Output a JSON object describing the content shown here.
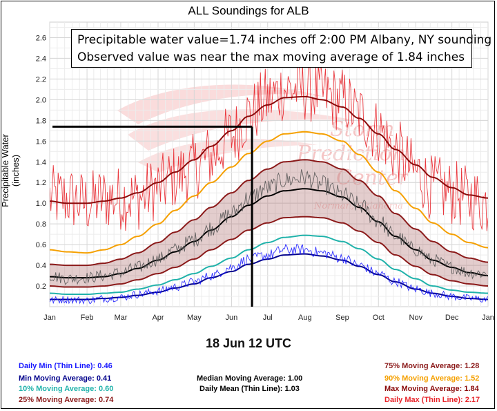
{
  "chart_data": {
    "type": "line",
    "title": "ALL Soundings for ALB",
    "ylabel": "Precipitable Water (inches)",
    "xlabel": "",
    "ylim": [
      0,
      2.75
    ],
    "x_ticks": [
      "Jan",
      "Feb",
      "Mar",
      "Apr",
      "May",
      "Jun",
      "Jul",
      "Aug",
      "Sep",
      "Oct",
      "Nov",
      "Dec",
      "Jan"
    ],
    "y_ticks": [
      0.2,
      0.4,
      0.6,
      0.8,
      1.0,
      1.2,
      1.4,
      1.6,
      1.8,
      2.0,
      2.2,
      2.4,
      2.6
    ],
    "grid": true,
    "series": [
      {
        "name": "Daily Max (Thin Line)",
        "color": "#e8242a",
        "style": "thin-noisy",
        "x": [
          1,
          15,
          32,
          46,
          60,
          74,
          91,
          105,
          121,
          135,
          152,
          166,
          182,
          196,
          213,
          227,
          244,
          258,
          274,
          288,
          305,
          319,
          335,
          349,
          365
        ],
        "values": [
          1.05,
          1.05,
          1.0,
          1.05,
          1.05,
          1.05,
          1.15,
          1.25,
          1.35,
          1.45,
          1.65,
          1.85,
          2.0,
          2.1,
          2.1,
          2.05,
          2.0,
          1.85,
          1.7,
          1.5,
          1.3,
          1.15,
          1.1,
          1.05,
          1.0
        ]
      },
      {
        "name": "Max Moving Average",
        "color": "#8b0a0a",
        "x": [
          1,
          15,
          32,
          46,
          60,
          74,
          91,
          105,
          121,
          135,
          152,
          166,
          182,
          196,
          213,
          227,
          244,
          258,
          274,
          288,
          305,
          319,
          335,
          349,
          365
        ],
        "values": [
          1.02,
          1.0,
          1.0,
          1.02,
          1.05,
          1.1,
          1.2,
          1.3,
          1.42,
          1.55,
          1.7,
          1.84,
          1.95,
          2.02,
          2.03,
          2.0,
          1.93,
          1.82,
          1.67,
          1.52,
          1.37,
          1.25,
          1.15,
          1.08,
          1.05
        ]
      },
      {
        "name": "90% Moving Average",
        "color": "#f5a000",
        "x": [
          1,
          15,
          32,
          46,
          60,
          74,
          91,
          105,
          121,
          135,
          152,
          166,
          182,
          196,
          213,
          227,
          244,
          258,
          274,
          288,
          305,
          319,
          335,
          349,
          365
        ],
        "values": [
          0.55,
          0.53,
          0.52,
          0.55,
          0.6,
          0.68,
          0.8,
          0.93,
          1.07,
          1.2,
          1.35,
          1.48,
          1.6,
          1.67,
          1.69,
          1.67,
          1.6,
          1.47,
          1.3,
          1.12,
          0.95,
          0.81,
          0.7,
          0.62,
          0.57
        ]
      },
      {
        "name": "75% Moving Average",
        "color": "#8b1a1a",
        "x": [
          1,
          15,
          32,
          46,
          60,
          74,
          91,
          105,
          121,
          135,
          152,
          166,
          182,
          196,
          213,
          227,
          244,
          258,
          274,
          288,
          305,
          319,
          335,
          349,
          365
        ],
        "values": [
          0.41,
          0.4,
          0.4,
          0.42,
          0.46,
          0.52,
          0.62,
          0.72,
          0.84,
          0.96,
          1.1,
          1.22,
          1.33,
          1.4,
          1.42,
          1.4,
          1.33,
          1.22,
          1.07,
          0.9,
          0.75,
          0.63,
          0.53,
          0.47,
          0.43
        ]
      },
      {
        "name": "Median Moving Average",
        "color": "#000000",
        "x": [
          1,
          15,
          32,
          46,
          60,
          74,
          91,
          105,
          121,
          135,
          152,
          166,
          182,
          196,
          213,
          227,
          244,
          258,
          274,
          288,
          305,
          319,
          335,
          349,
          365
        ],
        "values": [
          0.29,
          0.28,
          0.28,
          0.29,
          0.32,
          0.37,
          0.45,
          0.53,
          0.63,
          0.74,
          0.87,
          0.98,
          1.07,
          1.12,
          1.14,
          1.12,
          1.06,
          0.96,
          0.82,
          0.68,
          0.55,
          0.45,
          0.38,
          0.33,
          0.3
        ]
      },
      {
        "name": "Daily Mean (Thin Line)",
        "color": "#555555",
        "style": "thin-noisy",
        "x": [
          1,
          15,
          32,
          46,
          60,
          74,
          91,
          105,
          121,
          135,
          152,
          166,
          182,
          196,
          213,
          227,
          244,
          258,
          274,
          288,
          305,
          319,
          335,
          349,
          365
        ],
        "values": [
          0.3,
          0.27,
          0.28,
          0.3,
          0.33,
          0.38,
          0.46,
          0.55,
          0.65,
          0.76,
          0.9,
          1.05,
          1.15,
          1.22,
          1.25,
          1.18,
          1.08,
          0.98,
          0.83,
          0.68,
          0.55,
          0.45,
          0.38,
          0.33,
          0.32
        ]
      },
      {
        "name": "25% Moving Average",
        "color": "#8b1a1a",
        "x": [
          1,
          15,
          32,
          46,
          60,
          74,
          91,
          105,
          121,
          135,
          152,
          166,
          182,
          196,
          213,
          227,
          244,
          258,
          274,
          288,
          305,
          319,
          335,
          349,
          365
        ],
        "values": [
          0.2,
          0.19,
          0.19,
          0.2,
          0.22,
          0.26,
          0.32,
          0.38,
          0.46,
          0.55,
          0.65,
          0.74,
          0.81,
          0.86,
          0.87,
          0.86,
          0.81,
          0.73,
          0.62,
          0.5,
          0.39,
          0.31,
          0.25,
          0.22,
          0.2
        ]
      },
      {
        "name": "10% Moving Average",
        "color": "#20b2aa",
        "x": [
          1,
          15,
          32,
          46,
          60,
          74,
          91,
          105,
          121,
          135,
          152,
          166,
          182,
          196,
          213,
          227,
          244,
          258,
          274,
          288,
          305,
          319,
          335,
          349,
          365
        ],
        "values": [
          0.13,
          0.12,
          0.12,
          0.13,
          0.14,
          0.17,
          0.21,
          0.26,
          0.32,
          0.39,
          0.47,
          0.55,
          0.62,
          0.67,
          0.69,
          0.68,
          0.63,
          0.56,
          0.46,
          0.36,
          0.27,
          0.2,
          0.16,
          0.14,
          0.13
        ]
      },
      {
        "name": "Min Moving Average",
        "color": "#00008b",
        "x": [
          1,
          15,
          32,
          46,
          60,
          74,
          91,
          105,
          121,
          135,
          152,
          166,
          182,
          196,
          213,
          227,
          244,
          258,
          274,
          288,
          305,
          319,
          335,
          349,
          365
        ],
        "values": [
          0.07,
          0.07,
          0.07,
          0.08,
          0.09,
          0.11,
          0.14,
          0.18,
          0.22,
          0.28,
          0.34,
          0.41,
          0.46,
          0.5,
          0.51,
          0.49,
          0.45,
          0.39,
          0.31,
          0.24,
          0.17,
          0.13,
          0.1,
          0.08,
          0.07
        ]
      },
      {
        "name": "Daily Min (Thin Line)",
        "color": "#1a1aff",
        "style": "thin-noisy",
        "x": [
          1,
          15,
          32,
          46,
          60,
          74,
          91,
          105,
          121,
          135,
          152,
          166,
          182,
          196,
          213,
          227,
          244,
          258,
          274,
          288,
          305,
          319,
          335,
          349,
          365
        ],
        "values": [
          0.06,
          0.07,
          0.06,
          0.08,
          0.09,
          0.12,
          0.15,
          0.19,
          0.24,
          0.3,
          0.38,
          0.46,
          0.5,
          0.55,
          0.55,
          0.52,
          0.47,
          0.4,
          0.32,
          0.24,
          0.17,
          0.13,
          0.1,
          0.08,
          0.07
        ]
      }
    ],
    "shaded_band": {
      "between": [
        "25% Moving Average",
        "75% Moving Average"
      ],
      "color": "#b07070"
    },
    "marker": {
      "date": "18 Jun",
      "day_of_year": 169,
      "value": 1.74,
      "color": "#000000"
    }
  },
  "annotation": {
    "line1": "Precipitable water value=1.74 inches off 2:00 PM Albany, NY sounding",
    "line2": "Observed value was near the max moving average of 1.84 inches"
  },
  "date_label": "18 Jun 12 UTC",
  "watermark": {
    "line1": "Storm",
    "line2": "Prediction",
    "line3": "Center",
    "line4": "Norman, Oklahoma"
  },
  "legend": {
    "left": [
      {
        "label": "Daily Min (Thin Line): ",
        "value": "0.46",
        "color": "#1a1aff"
      },
      {
        "label": "Min Moving Average: ",
        "value": "0.41",
        "color": "#00008b"
      },
      {
        "label": "10% Moving Average: ",
        "value": "0.60",
        "color": "#20b2aa"
      },
      {
        "label": "25% Moving Average: ",
        "value": "0.74",
        "color": "#8b1a1a"
      }
    ],
    "center": [
      {
        "label": "Median Moving Average: ",
        "value": "1.00",
        "color": "#000000"
      },
      {
        "label": "Daily Mean (Thin Line): ",
        "value": "1.03",
        "color": "#000000"
      }
    ],
    "right": [
      {
        "label": "75% Moving Average: ",
        "value": "1.28",
        "color": "#8b1a1a"
      },
      {
        "label": "90% Moving Average: ",
        "value": "1.52",
        "color": "#f5a000"
      },
      {
        "label": "Max Moving Average: ",
        "value": "1.84",
        "color": "#8b0a0a"
      },
      {
        "label": "Daily Max (Thin Line): ",
        "value": "2.17",
        "color": "#e8242a"
      }
    ]
  }
}
